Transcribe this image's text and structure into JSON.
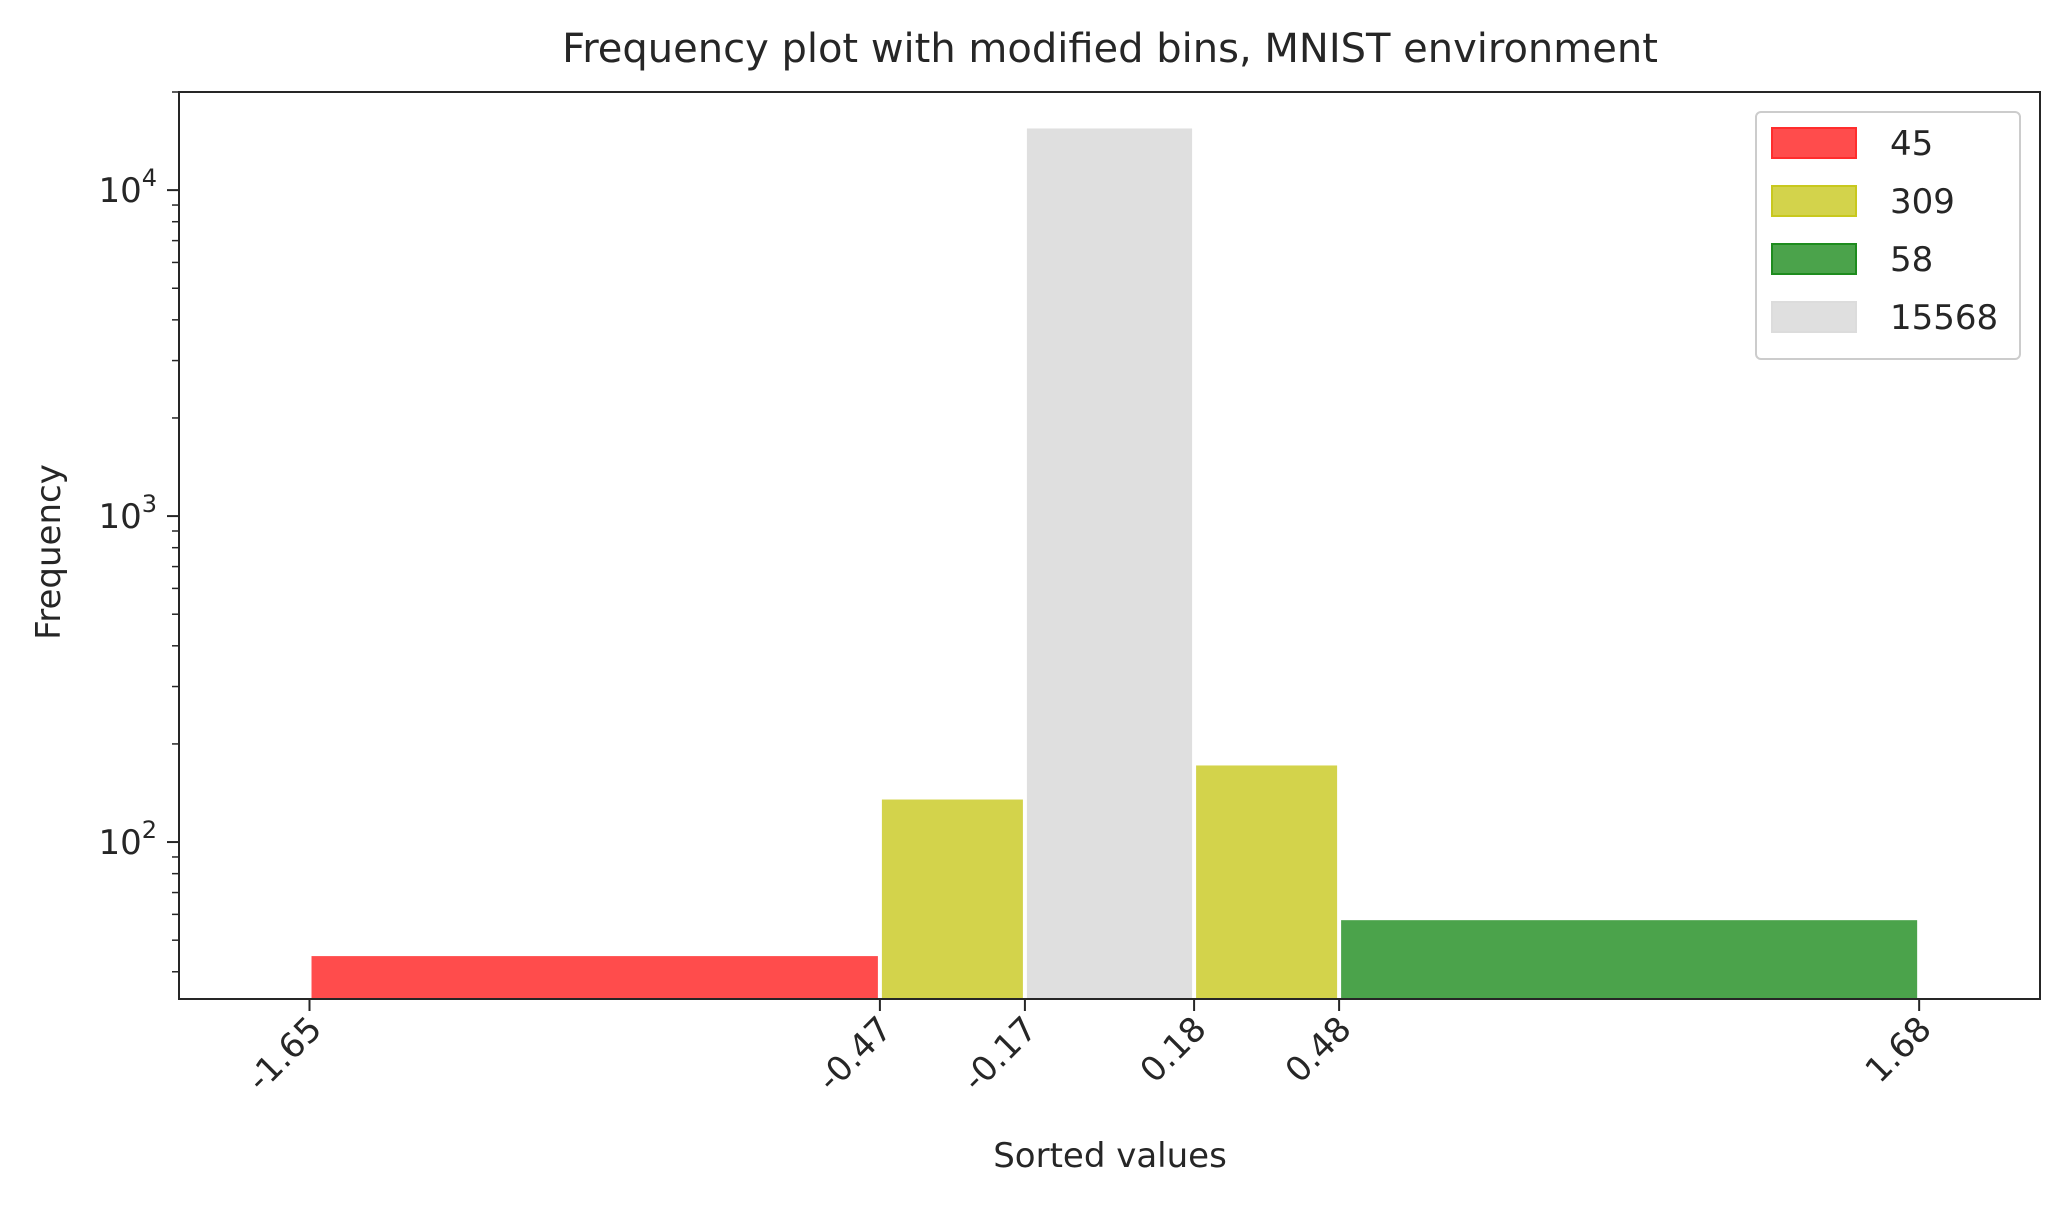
{
  "chart_data": {
    "type": "bar",
    "title": "Frequency plot with modified bins, MNIST environment",
    "xlabel": "Sorted values",
    "ylabel": "Frequency",
    "yscale": "log",
    "ylim": [
      33,
      20000
    ],
    "xlim": [
      -1.92,
      1.93
    ],
    "grid": false,
    "legend_position": "top-right",
    "x_tick_values": [
      -1.65,
      -0.47,
      -0.17,
      0.18,
      0.48,
      1.68
    ],
    "x_tick_labels": [
      "-1.65",
      "-0.47",
      "-0.17",
      "0.18",
      "0.48",
      "1.68"
    ],
    "y_ticks": [
      {
        "value": 100,
        "base": "10",
        "exp": "2"
      },
      {
        "value": 1000,
        "base": "10",
        "exp": "3"
      },
      {
        "value": 10000,
        "base": "10",
        "exp": "4"
      }
    ],
    "series": [
      {
        "name": "45",
        "color": "#ff2d2d",
        "edge": "#ff2d2d",
        "opacity": 0.85
      },
      {
        "name": "309",
        "color": "#c8c81e",
        "edge": "#c8c81e",
        "opacity": 0.8
      },
      {
        "name": "58",
        "color": "#1e8c1e",
        "edge": "#1e8c1e",
        "opacity": 0.8
      },
      {
        "name": "15568",
        "color": "#dcdcdc",
        "edge": "#dcdcdc",
        "opacity": 0.9
      }
    ],
    "bars": [
      {
        "series": 0,
        "x0": -1.65,
        "x1": -0.47,
        "value": 45
      },
      {
        "series": 1,
        "x0": -0.47,
        "x1": -0.17,
        "value": 136
      },
      {
        "series": 3,
        "x0": -0.17,
        "x1": 0.18,
        "value": 15568
      },
      {
        "series": 1,
        "x0": 0.18,
        "x1": 0.48,
        "value": 173
      },
      {
        "series": 2,
        "x0": 0.48,
        "x1": 1.68,
        "value": 58
      }
    ]
  }
}
